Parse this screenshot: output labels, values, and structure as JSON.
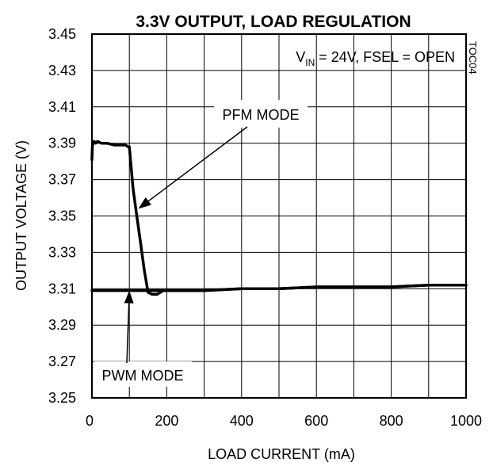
{
  "chart_data": {
    "type": "line",
    "title": "3.3V OUTPUT,  LOAD REGULATION",
    "xlabel": "LOAD CURRENT (mA)",
    "ylabel": "OUTPUT  VOLTAGE  (V)",
    "xlim": [
      0,
      1000
    ],
    "ylim": [
      3.25,
      3.45
    ],
    "x_ticks": [
      0,
      200,
      400,
      600,
      800,
      1000
    ],
    "y_ticks": [
      3.45,
      3.43,
      3.41,
      3.39,
      3.37,
      3.35,
      3.33,
      3.31,
      3.29,
      3.27,
      3.25
    ],
    "grid": true,
    "condition": {
      "prefix": "V",
      "subscript": "IN",
      "rest": " = 24V, FSEL = OPEN"
    },
    "figure_id": "TOC04",
    "series": [
      {
        "name": "PFM MODE",
        "x": [
          0,
          1,
          3,
          6,
          10,
          15,
          25,
          40,
          60,
          80,
          90,
          97,
          100,
          110,
          120,
          130,
          140,
          150,
          160,
          175,
          190,
          200,
          250,
          300,
          400,
          500,
          600,
          700,
          800,
          900,
          1000
        ],
        "y": [
          3.381,
          3.388,
          3.39,
          3.391,
          3.39,
          3.391,
          3.39,
          3.39,
          3.389,
          3.389,
          3.389,
          3.388,
          3.388,
          3.365,
          3.35,
          3.335,
          3.32,
          3.308,
          3.307,
          3.307,
          3.309,
          3.309,
          3.309,
          3.309,
          3.31,
          3.31,
          3.311,
          3.311,
          3.311,
          3.312,
          3.312
        ]
      },
      {
        "name": "PWM MODE",
        "x": [
          0,
          100,
          200,
          300,
          400,
          500,
          600,
          700,
          800,
          900,
          1000
        ],
        "y": [
          3.309,
          3.309,
          3.309,
          3.309,
          3.31,
          3.31,
          3.311,
          3.311,
          3.311,
          3.312,
          3.312
        ]
      }
    ],
    "annotations": [
      {
        "text": "PFM MODE",
        "target_series": "PFM MODE",
        "target": {
          "x": 124,
          "y": 3.354
        }
      },
      {
        "text": "PWM MODE",
        "target_series": "PWM MODE",
        "target": {
          "x": 100,
          "y": 3.309
        }
      }
    ]
  }
}
